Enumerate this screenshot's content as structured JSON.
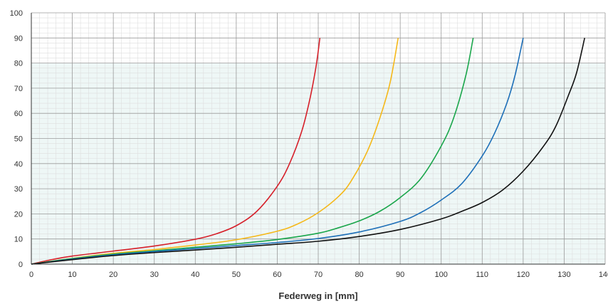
{
  "chart_data": {
    "type": "line",
    "title": "",
    "xlabel": "Federweg in [mm]",
    "ylabel": "",
    "xlim": [
      0,
      140
    ],
    "ylim": [
      0,
      100
    ],
    "x_ticks": [
      0,
      10,
      20,
      30,
      40,
      50,
      60,
      70,
      80,
      90,
      100,
      110,
      120,
      130,
      140
    ],
    "y_ticks": [
      0,
      10,
      20,
      30,
      40,
      50,
      60,
      70,
      80,
      90,
      100
    ],
    "grid": true,
    "legend": "none",
    "shaded_band": {
      "y_from": 0,
      "y_to": 80,
      "color": "#eef7f6"
    },
    "colors": {
      "grid_major": "#9a9a9a",
      "grid_minor": "#dedede",
      "axis": "#333333"
    },
    "series": [
      {
        "color": "#d6202a",
        "x": [
          0,
          5,
          10,
          20,
          30,
          40,
          45,
          50,
          55,
          60,
          63,
          66,
          68,
          69.5,
          70.4
        ],
        "y": [
          0,
          1.8,
          3.2,
          5.2,
          7.2,
          9.9,
          12.0,
          15.3,
          21.0,
          31.0,
          40.0,
          53.0,
          66.0,
          79.0,
          90.0
        ]
      },
      {
        "color": "#f5b819",
        "x": [
          0,
          10,
          20,
          30,
          40,
          50,
          60,
          65,
          70,
          75,
          78,
          82,
          85,
          87.5,
          89.5
        ],
        "y": [
          0,
          2.3,
          4.3,
          5.8,
          7.6,
          9.7,
          13.1,
          16.0,
          20.5,
          27.0,
          33.0,
          45.0,
          58.0,
          72.0,
          90.0
        ]
      },
      {
        "color": "#1aa64b",
        "x": [
          0,
          10,
          20,
          30,
          40,
          50,
          60,
          70,
          75,
          80,
          85,
          90,
          95,
          100,
          103,
          106,
          107.8
        ],
        "y": [
          0,
          2.2,
          4.0,
          5.3,
          6.7,
          8.1,
          9.8,
          12.3,
          14.5,
          17.2,
          21.0,
          26.5,
          34.0,
          47.0,
          58.0,
          75.0,
          90.0
        ]
      },
      {
        "color": "#1d6fb8",
        "x": [
          0,
          10,
          20,
          30,
          40,
          50,
          60,
          70,
          80,
          90,
          95,
          100,
          105,
          110,
          113,
          116,
          118,
          120
        ],
        "y": [
          0,
          2.0,
          3.7,
          5.0,
          6.2,
          7.4,
          8.6,
          10.2,
          12.8,
          17.0,
          20.5,
          25.5,
          32.0,
          43.0,
          52.0,
          64.0,
          75.0,
          90.0
        ]
      },
      {
        "color": "#111111",
        "x": [
          0,
          10,
          20,
          30,
          40,
          50,
          60,
          70,
          80,
          90,
          100,
          105,
          110,
          115,
          120,
          125,
          128,
          131,
          133,
          135
        ],
        "y": [
          0,
          1.8,
          3.4,
          4.6,
          5.6,
          6.7,
          7.9,
          9.1,
          11.0,
          13.8,
          18.0,
          21.0,
          24.5,
          29.5,
          37.0,
          47.0,
          55.0,
          67.0,
          76.0,
          90.0
        ]
      }
    ]
  }
}
